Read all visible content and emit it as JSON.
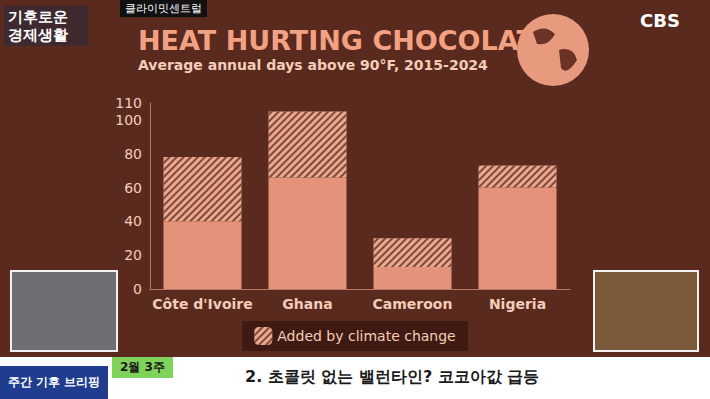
{
  "chart_data": {
    "type": "bar",
    "title": "HEAT HURTING CHOCOLATE",
    "subtitle": "Average annual days above 90°F, 2015-2024",
    "categories": [
      "Côte d'Ivoire",
      "Ghana",
      "Cameroon",
      "Nigeria"
    ],
    "series": [
      {
        "color": "#e4937a",
        "values": [
          40,
          66,
          13,
          60
        ]
      },
      {
        "name": "Added by climate change",
        "color": "#eaa88f",
        "values": [
          38,
          39,
          17,
          13
        ]
      }
    ],
    "stacked": true,
    "ylim": [
      0,
      110
    ],
    "yticks": [
      0,
      20,
      40,
      60,
      80,
      100
    ],
    "grid": false,
    "legend": "bottom",
    "annotations": [
      "기후로운 경제생활",
      "클라이밋센트럴",
      "CBS",
      "주간 기후 브리핑",
      "2월 3주",
      "2. 초콜릿 없는 밸런타인? 코코아값 급등"
    ]
  }
}
